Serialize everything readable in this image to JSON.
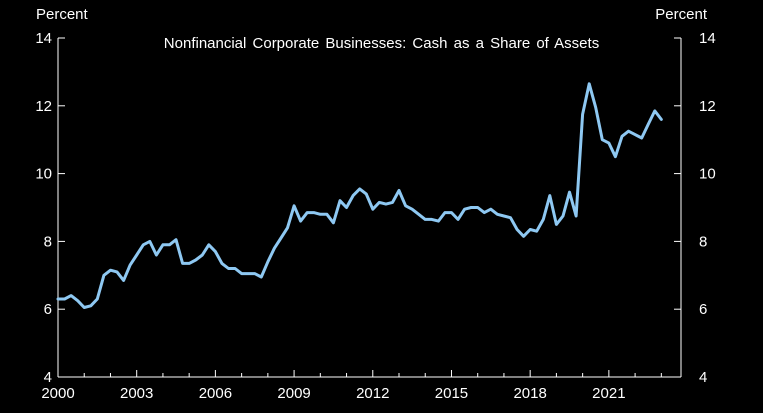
{
  "chart_data": {
    "type": "line",
    "title": "Nonfinancial  Corporate  Businesses: Cash as a Share  of Assets",
    "ylabel_left": "Percent",
    "ylabel_right": "Percent",
    "xlim": [
      2000,
      2023.75
    ],
    "ylim": [
      4,
      14
    ],
    "x_ticks": [
      2000,
      2003,
      2006,
      2009,
      2012,
      2015,
      2018,
      2021
    ],
    "x_tick_labels": [
      "2000",
      "2003",
      "2006",
      "2009",
      "2012",
      "2015",
      "2018",
      "2021"
    ],
    "y_ticks": [
      4,
      6,
      8,
      10,
      12,
      14
    ],
    "y_tick_labels": [
      "4",
      "6",
      "8",
      "10",
      "12",
      "14"
    ],
    "grid": false,
    "line_color": "#8EC8F2",
    "background": "#000000",
    "series": [
      {
        "x": [
          2000.0,
          2000.25,
          2000.5,
          2000.75,
          2001.0,
          2001.25,
          2001.5,
          2001.75,
          2002.0,
          2002.25,
          2002.5,
          2002.75,
          2003.0,
          2003.25,
          2003.5,
          2003.75,
          2004.0,
          2004.25,
          2004.5,
          2004.75,
          2005.0,
          2005.25,
          2005.5,
          2005.75,
          2006.0,
          2006.25,
          2006.5,
          2006.75,
          2007.0,
          2007.25,
          2007.5,
          2007.75,
          2008.0,
          2008.25,
          2008.5,
          2008.75,
          2009.0,
          2009.25,
          2009.5,
          2009.75,
          2010.0,
          2010.25,
          2010.5,
          2010.75,
          2011.0,
          2011.25,
          2011.5,
          2011.75,
          2012.0,
          2012.25,
          2012.5,
          2012.75,
          2013.0,
          2013.25,
          2013.5,
          2013.75,
          2014.0,
          2014.25,
          2014.5,
          2014.75,
          2015.0,
          2015.25,
          2015.5,
          2015.75,
          2016.0,
          2016.25,
          2016.5,
          2016.75,
          2017.0,
          2017.25,
          2017.5,
          2017.75,
          2018.0,
          2018.25,
          2018.5,
          2018.75,
          2019.0,
          2019.25,
          2019.5,
          2019.75,
          2020.0,
          2020.25,
          2020.5,
          2020.75,
          2021.0,
          2021.25,
          2021.5,
          2021.75,
          2022.0,
          2022.25,
          2022.5,
          2022.75,
          2023.0
        ],
        "y": [
          6.3,
          6.3,
          6.4,
          6.25,
          6.05,
          6.1,
          6.3,
          7.0,
          7.15,
          7.1,
          6.85,
          7.3,
          7.6,
          7.9,
          8.0,
          7.6,
          7.9,
          7.9,
          8.05,
          7.35,
          7.35,
          7.45,
          7.6,
          7.9,
          7.7,
          7.35,
          7.2,
          7.2,
          7.05,
          7.05,
          7.05,
          6.95,
          7.4,
          7.8,
          8.1,
          8.4,
          9.05,
          8.6,
          8.85,
          8.85,
          8.8,
          8.8,
          8.55,
          9.2,
          9.0,
          9.35,
          9.55,
          9.4,
          8.95,
          9.15,
          9.1,
          9.15,
          9.5,
          9.05,
          8.95,
          8.8,
          8.65,
          8.65,
          8.6,
          8.85,
          8.85,
          8.65,
          8.95,
          9.0,
          9.0,
          8.85,
          8.95,
          8.8,
          8.75,
          8.7,
          8.35,
          8.15,
          8.35,
          8.3,
          8.65,
          9.35,
          8.5,
          8.75,
          9.45,
          8.75,
          11.75,
          12.65,
          11.95,
          11.0,
          10.9,
          10.5,
          11.1,
          11.25,
          11.15,
          11.05,
          11.45,
          11.85,
          11.6
        ]
      }
    ]
  }
}
